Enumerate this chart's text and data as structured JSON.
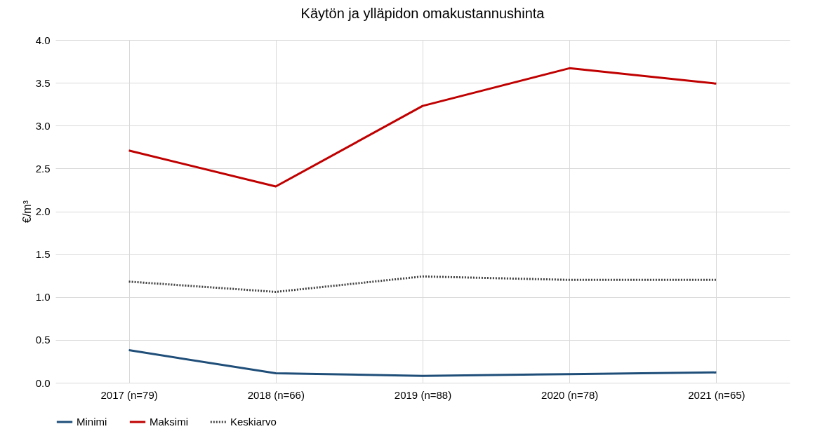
{
  "chart_data": {
    "type": "line",
    "title": "Käytön ja ylläpidon omakustannushinta",
    "ylabel": "€/m³",
    "categories": [
      "2017 (n=79)",
      "2018 (n=66)",
      "2019 (n=88)",
      "2020 (n=78)",
      "2021 (n=65)"
    ],
    "series": [
      {
        "name": "Minimi",
        "color": "#1f4e79",
        "line_style": "solid",
        "values": [
          0.38,
          0.11,
          0.08,
          0.1,
          0.12
        ]
      },
      {
        "name": "Maksimi",
        "color": "#c00000",
        "line_style": "solid",
        "values": [
          2.71,
          2.29,
          3.23,
          3.67,
          3.49
        ]
      },
      {
        "name": "Keskiarvo",
        "color": "#404040",
        "line_style": "dotted",
        "values": [
          1.18,
          1.06,
          1.24,
          1.2,
          1.2
        ]
      }
    ],
    "ylim": [
      0,
      4
    ],
    "yticks": [
      {
        "value": 0,
        "label": "0.0"
      },
      {
        "value": 0.5,
        "label": "0.5"
      },
      {
        "value": 1,
        "label": "1.0"
      },
      {
        "value": 1.5,
        "label": "1.5"
      },
      {
        "value": 2,
        "label": "2.0"
      },
      {
        "value": 2.5,
        "label": "2.5"
      },
      {
        "value": 3,
        "label": "3.0"
      },
      {
        "value": 3.5,
        "label": "3.5"
      },
      {
        "value": 4,
        "label": "4.0"
      }
    ],
    "grid": true,
    "legend": "bottom",
    "marker": "none"
  }
}
